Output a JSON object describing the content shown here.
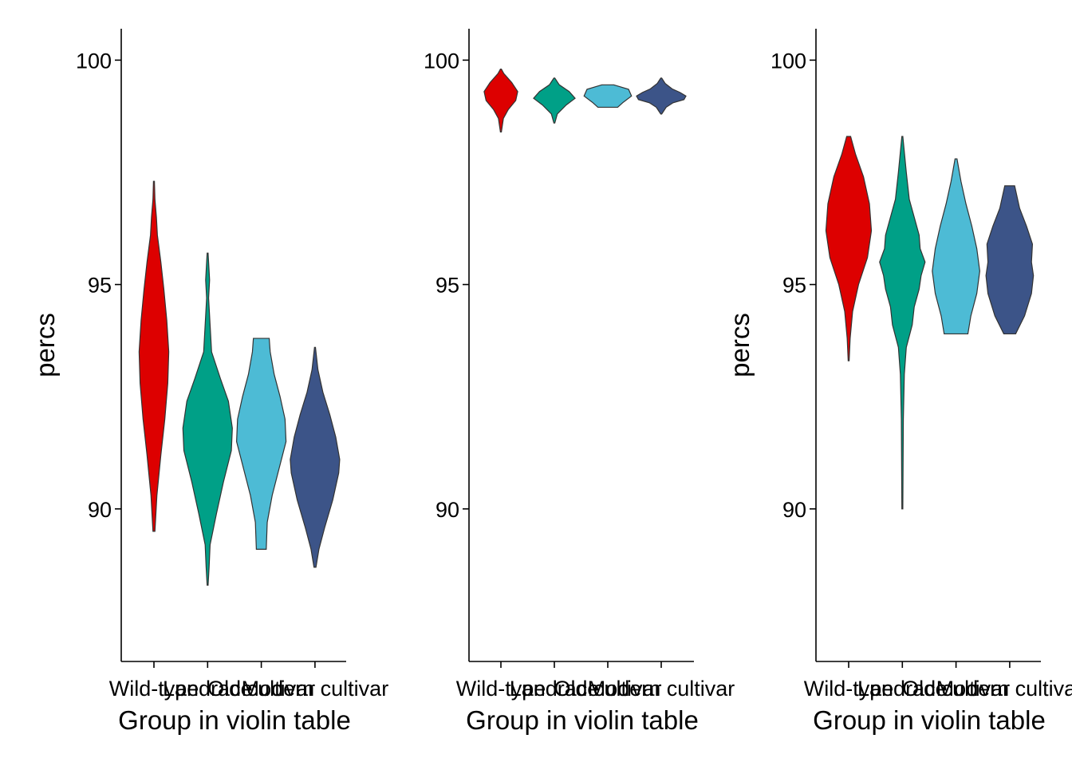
{
  "chart_data": [
    {
      "type": "violin",
      "xlabel": "Group in violin table",
      "ylabel": "percs",
      "ylim": [
        86.6,
        100.7
      ],
      "yticks": [
        90,
        95,
        100
      ],
      "categories": [
        "Wild-type",
        "Landrace",
        "Old cultivar",
        "Modern cultivar"
      ],
      "legend": "none",
      "grid": false,
      "violins": [
        {
          "category": "Wild-type",
          "color": "#E41A1C",
          "fill": "#DD0000",
          "min": 89.5,
          "max": 97.3,
          "profile": [
            [
              89.5,
              0.02
            ],
            [
              90.3,
              0.06
            ],
            [
              91.2,
              0.14
            ],
            [
              92.0,
              0.22
            ],
            [
              92.8,
              0.28
            ],
            [
              93.5,
              0.3
            ],
            [
              94.2,
              0.26
            ],
            [
              94.9,
              0.2
            ],
            [
              95.5,
              0.14
            ],
            [
              96.1,
              0.07
            ],
            [
              96.5,
              0.05
            ],
            [
              96.9,
              0.02
            ],
            [
              97.3,
              0.0
            ]
          ]
        },
        {
          "category": "Landrace",
          "color": "#009E80",
          "fill": "#00A087",
          "min": 88.3,
          "max": 95.7,
          "profile": [
            [
              88.3,
              0.0
            ],
            [
              88.7,
              0.03
            ],
            [
              89.2,
              0.05
            ],
            [
              89.9,
              0.18
            ],
            [
              90.6,
              0.32
            ],
            [
              91.3,
              0.48
            ],
            [
              91.8,
              0.5
            ],
            [
              92.4,
              0.42
            ],
            [
              92.9,
              0.26
            ],
            [
              93.5,
              0.08
            ],
            [
              94.1,
              0.05
            ],
            [
              94.7,
              0.02
            ],
            [
              95.1,
              0.04
            ],
            [
              95.7,
              0.0
            ]
          ]
        },
        {
          "category": "Old cultivar",
          "color": "#4DBBD5",
          "fill": "#4DBBD5",
          "min": 89.1,
          "max": 93.8,
          "profile": [
            [
              89.1,
              0.1
            ],
            [
              89.7,
              0.12
            ],
            [
              90.3,
              0.22
            ],
            [
              90.9,
              0.36
            ],
            [
              91.5,
              0.5
            ],
            [
              92.0,
              0.48
            ],
            [
              92.5,
              0.38
            ],
            [
              93.0,
              0.26
            ],
            [
              93.5,
              0.18
            ],
            [
              93.8,
              0.16
            ]
          ]
        },
        {
          "category": "Modern cultivar",
          "color": "#3C5488",
          "fill": "#3C5488",
          "min": 88.7,
          "max": 93.6,
          "profile": [
            [
              88.7,
              0.02
            ],
            [
              89.1,
              0.08
            ],
            [
              89.6,
              0.2
            ],
            [
              90.2,
              0.36
            ],
            [
              90.8,
              0.48
            ],
            [
              91.1,
              0.5
            ],
            [
              91.6,
              0.42
            ],
            [
              92.1,
              0.3
            ],
            [
              92.6,
              0.16
            ],
            [
              93.1,
              0.06
            ],
            [
              93.6,
              0.0
            ]
          ]
        }
      ]
    },
    {
      "type": "violin",
      "xlabel": "Group in violin table",
      "ylabel": "",
      "ylim": [
        86.6,
        100.7
      ],
      "yticks": [
        90,
        95,
        100
      ],
      "categories": [
        "Wild-type",
        "Landrace",
        "Old cultivar",
        "Modern cultivar"
      ],
      "legend": "none",
      "grid": false,
      "violins": [
        {
          "category": "Wild-type",
          "color": "#E41A1C",
          "fill": "#DD0000",
          "min": 98.4,
          "max": 99.8,
          "profile": [
            [
              98.4,
              0.0
            ],
            [
              98.7,
              0.05
            ],
            [
              98.9,
              0.15
            ],
            [
              99.1,
              0.3
            ],
            [
              99.3,
              0.34
            ],
            [
              99.5,
              0.22
            ],
            [
              99.7,
              0.06
            ],
            [
              99.8,
              0.0
            ]
          ]
        },
        {
          "category": "Landrace",
          "color": "#009E80",
          "fill": "#00A087",
          "min": 98.6,
          "max": 99.6,
          "profile": [
            [
              98.6,
              0.0
            ],
            [
              98.8,
              0.06
            ],
            [
              99.0,
              0.24
            ],
            [
              99.15,
              0.42
            ],
            [
              99.3,
              0.3
            ],
            [
              99.45,
              0.1
            ],
            [
              99.6,
              0.0
            ]
          ]
        },
        {
          "category": "Old cultivar",
          "color": "#4DBBD5",
          "fill": "#4DBBD5",
          "min": 98.95,
          "max": 99.45,
          "profile": [
            [
              98.95,
              0.2
            ],
            [
              99.05,
              0.3
            ],
            [
              99.2,
              0.48
            ],
            [
              99.35,
              0.42
            ],
            [
              99.45,
              0.12
            ]
          ]
        },
        {
          "category": "Modern cultivar",
          "color": "#3C5488",
          "fill": "#3C5488",
          "min": 98.8,
          "max": 99.6,
          "profile": [
            [
              98.8,
              0.0
            ],
            [
              98.95,
              0.1
            ],
            [
              99.05,
              0.24
            ],
            [
              99.12,
              0.46
            ],
            [
              99.2,
              0.5
            ],
            [
              99.28,
              0.38
            ],
            [
              99.36,
              0.22
            ],
            [
              99.48,
              0.08
            ],
            [
              99.6,
              0.0
            ]
          ]
        }
      ]
    },
    {
      "type": "violin",
      "xlabel": "Group in violin table",
      "ylabel": "percs",
      "ylim": [
        86.6,
        100.7
      ],
      "yticks": [
        90,
        95,
        100
      ],
      "categories": [
        "Wild-type",
        "Landrace",
        "Old cultivar",
        "Modern cultivar"
      ],
      "legend": "none",
      "grid": false,
      "violins": [
        {
          "category": "Wild-type",
          "color": "#E41A1C",
          "fill": "#DD0000",
          "min": 93.3,
          "max": 98.3,
          "profile": [
            [
              93.3,
              0.0
            ],
            [
              93.8,
              0.03
            ],
            [
              94.4,
              0.08
            ],
            [
              95.0,
              0.2
            ],
            [
              95.6,
              0.38
            ],
            [
              96.2,
              0.46
            ],
            [
              96.8,
              0.42
            ],
            [
              97.4,
              0.3
            ],
            [
              97.9,
              0.14
            ],
            [
              98.3,
              0.04
            ]
          ]
        },
        {
          "category": "Landrace",
          "color": "#009E80",
          "fill": "#00A087",
          "min": 90.0,
          "max": 98.3,
          "profile": [
            [
              90.0,
              0.0
            ],
            [
              92.0,
              0.02
            ],
            [
              93.0,
              0.04
            ],
            [
              93.6,
              0.08
            ],
            [
              94.1,
              0.2
            ],
            [
              94.5,
              0.24
            ],
            [
              94.9,
              0.34
            ],
            [
              95.2,
              0.38
            ],
            [
              95.5,
              0.46
            ],
            [
              95.8,
              0.36
            ],
            [
              96.1,
              0.34
            ],
            [
              96.5,
              0.24
            ],
            [
              96.9,
              0.14
            ],
            [
              97.5,
              0.08
            ],
            [
              98.3,
              0.0
            ]
          ]
        },
        {
          "category": "Old cultivar",
          "color": "#4DBBD5",
          "fill": "#4DBBD5",
          "min": 93.9,
          "max": 97.8,
          "profile": [
            [
              93.9,
              0.24
            ],
            [
              94.3,
              0.3
            ],
            [
              94.8,
              0.42
            ],
            [
              95.3,
              0.48
            ],
            [
              95.8,
              0.42
            ],
            [
              96.3,
              0.32
            ],
            [
              96.8,
              0.2
            ],
            [
              97.3,
              0.1
            ],
            [
              97.8,
              0.02
            ]
          ]
        },
        {
          "category": "Modern cultivar",
          "color": "#3C5488",
          "fill": "#3C5488",
          "min": 93.9,
          "max": 97.2,
          "profile": [
            [
              93.9,
              0.12
            ],
            [
              94.3,
              0.3
            ],
            [
              94.8,
              0.44
            ],
            [
              95.2,
              0.48
            ],
            [
              95.5,
              0.44
            ],
            [
              95.9,
              0.46
            ],
            [
              96.3,
              0.34
            ],
            [
              96.7,
              0.2
            ],
            [
              97.2,
              0.1
            ]
          ]
        }
      ]
    }
  ]
}
